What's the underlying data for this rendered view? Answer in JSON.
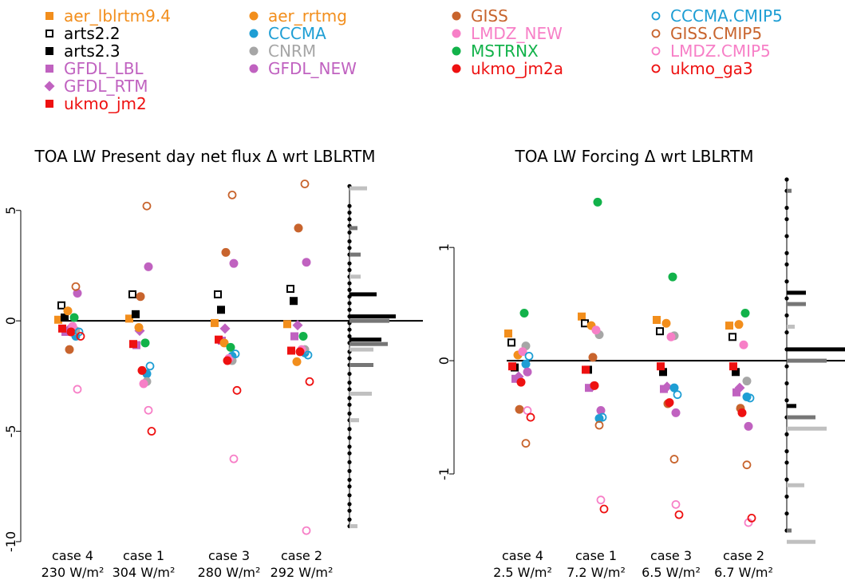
{
  "legend": [
    {
      "name": "aer_lblrtm9.4",
      "color": "#F28E1C",
      "shape": "square",
      "filled": true
    },
    {
      "name": "arts2.2",
      "color": "#000000",
      "shape": "square",
      "filled": false
    },
    {
      "name": "arts2.3",
      "color": "#000000",
      "shape": "square",
      "filled": true
    },
    {
      "name": "GFDL_LBL",
      "color": "#C062C0",
      "shape": "square",
      "filled": true
    },
    {
      "name": "GFDL_RTM",
      "color": "#C062C0",
      "shape": "diamond",
      "filled": true
    },
    {
      "name": "ukmo_jm2",
      "color": "#EE1111",
      "shape": "square",
      "filled": true
    },
    {
      "name": "aer_rrtmg",
      "color": "#F28E1C",
      "shape": "circle",
      "filled": true
    },
    {
      "name": "CCCMA",
      "color": "#1E9ED4",
      "shape": "circle",
      "filled": true
    },
    {
      "name": "CNRM",
      "color": "#A6A6A6",
      "shape": "circle",
      "filled": true
    },
    {
      "name": "GFDL_NEW",
      "color": "#C062C0",
      "shape": "circle",
      "filled": true
    },
    {
      "name": "GISS",
      "color": "#C8642D",
      "shape": "circle",
      "filled": true
    },
    {
      "name": "LMDZ_NEW",
      "color": "#F77FC7",
      "shape": "circle",
      "filled": true
    },
    {
      "name": "MSTRNX",
      "color": "#12B24A",
      "shape": "circle",
      "filled": true
    },
    {
      "name": "ukmo_jm2a",
      "color": "#EE1111",
      "shape": "circle",
      "filled": true
    },
    {
      "name": "CCCMA.CMIP5",
      "color": "#1E9ED4",
      "shape": "circle",
      "filled": false
    },
    {
      "name": "GISS.CMIP5",
      "color": "#C8642D",
      "shape": "circle",
      "filled": false
    },
    {
      "name": "LMDZ.CMIP5",
      "color": "#F77FC7",
      "shape": "circle",
      "filled": false
    },
    {
      "name": "ukmo_ga3",
      "color": "#EE1111",
      "shape": "circle",
      "filled": false
    }
  ],
  "chart_data": [
    {
      "type": "scatter",
      "title": "TOA LW Present day net flux Δ wrt LBLRTM",
      "ylim": [
        -10.4,
        6.4
      ],
      "yticks": [
        5,
        0,
        -5,
        -10
      ],
      "ytick_labels": [
        "5",
        "0",
        "-5",
        "-10"
      ],
      "categories": [
        {
          "line1": "case 4",
          "line2": "230 W/m²"
        },
        {
          "line1": "case 1",
          "line2": "304 W/m²"
        },
        {
          "line1": "case 3",
          "line2": "280 W/m²"
        },
        {
          "line1": "case 2",
          "line2": "292 W/m²"
        }
      ],
      "series": [
        {
          "name": "aer_lblrtm9.4",
          "values": [
            0.05,
            0.1,
            -0.1,
            -0.15
          ]
        },
        {
          "name": "arts2.2",
          "values": [
            0.7,
            1.2,
            1.2,
            1.45
          ]
        },
        {
          "name": "arts2.3",
          "values": [
            0.15,
            0.3,
            0.5,
            0.9
          ]
        },
        {
          "name": "GFDL_LBL",
          "values": [
            -0.5,
            -1.1,
            -0.9,
            -0.7
          ]
        },
        {
          "name": "GFDL_RTM",
          "values": [
            -0.4,
            -0.45,
            -0.35,
            -0.2
          ]
        },
        {
          "name": "ukmo_jm2",
          "values": [
            -0.35,
            -1.05,
            -0.85,
            -1.35
          ]
        },
        {
          "name": "aer_rrtmg",
          "values": [
            0.45,
            -0.3,
            -1.0,
            -1.85
          ]
        },
        {
          "name": "CCCMA",
          "values": [
            -0.7,
            -2.4,
            -1.6,
            -1.45
          ]
        },
        {
          "name": "CNRM",
          "values": [
            -0.45,
            -2.75,
            -1.8,
            -1.3
          ]
        },
        {
          "name": "GFDL_NEW",
          "values": [
            1.25,
            2.45,
            2.6,
            2.65
          ]
        },
        {
          "name": "GISS",
          "values": [
            -1.3,
            1.1,
            3.1,
            4.2
          ]
        },
        {
          "name": "LMDZ_NEW",
          "values": [
            -0.25,
            -2.85,
            -1.7,
            -1.3
          ]
        },
        {
          "name": "MSTRNX",
          "values": [
            0.15,
            -1.0,
            -1.2,
            -0.7
          ]
        },
        {
          "name": "ukmo_jm2a",
          "values": [
            -0.5,
            -2.25,
            -1.8,
            -1.4
          ]
        },
        {
          "name": "CCCMA.CMIP5",
          "values": [
            -0.5,
            -2.05,
            -1.5,
            -1.55
          ]
        },
        {
          "name": "GISS.CMIP5",
          "values": [
            1.55,
            5.2,
            5.7,
            6.2
          ]
        },
        {
          "name": "LMDZ.CMIP5",
          "values": [
            -3.1,
            -4.05,
            -6.25,
            -9.5
          ]
        },
        {
          "name": "ukmo_ga3",
          "values": [
            -0.7,
            -5.0,
            -3.15,
            -2.75
          ]
        }
      ],
      "distribution_dots": [
        6.1,
        5.2,
        4.9,
        4.6,
        4.3,
        4.0,
        3.6,
        3.3,
        3.0,
        2.6,
        2.3,
        2.0,
        1.7,
        1.4,
        1.1,
        0.8,
        0.5,
        0.2,
        -0.1,
        -0.4,
        -0.7,
        -1.0,
        -1.4,
        -1.7,
        -2.0,
        -2.4,
        -2.8,
        -3.1,
        -3.5,
        -3.8,
        -4.2,
        -4.5,
        -4.9,
        -5.3,
        -5.7,
        -6.0,
        -6.4,
        -6.8,
        -7.2,
        -7.5,
        -7.9,
        -8.3,
        -8.6,
        -9.0,
        -9.3
      ],
      "quantile_bars": [
        {
          "value": 0.2,
          "shade": "black",
          "len": 58
        },
        {
          "value": -0.85,
          "shade": "black",
          "len": 40
        },
        {
          "value": 1.2,
          "shade": "black",
          "len": 34
        },
        {
          "value": 0.0,
          "shade": "dark",
          "len": 50
        },
        {
          "value": -1.05,
          "shade": "dark",
          "len": 48
        },
        {
          "value": -2.0,
          "shade": "dark",
          "len": 30
        },
        {
          "value": 3.0,
          "shade": "dark",
          "len": 14
        },
        {
          "value": 4.2,
          "shade": "dark",
          "len": 10
        },
        {
          "value": 6.0,
          "shade": "light",
          "len": 22
        },
        {
          "value": 2.0,
          "shade": "light",
          "len": 14
        },
        {
          "value": -1.3,
          "shade": "light",
          "len": 30
        },
        {
          "value": -3.3,
          "shade": "light",
          "len": 28
        },
        {
          "value": -4.5,
          "shade": "light",
          "len": 12
        },
        {
          "value": -9.3,
          "shade": "light",
          "len": 10
        }
      ]
    },
    {
      "type": "scatter",
      "title": "TOA LW Forcing Δ wrt LBLRTM",
      "ylim": [
        -1.5,
        1.6
      ],
      "yticks": [
        1,
        0,
        -1
      ],
      "ytick_labels": [
        "1",
        "0",
        "-1"
      ],
      "categories": [
        {
          "line1": "case 4",
          "line2": "2.5 W/m²"
        },
        {
          "line1": "case 1",
          "line2": "7.2 W/m²"
        },
        {
          "line1": "case 3",
          "line2": "6.5 W/m²"
        },
        {
          "line1": "case 2",
          "line2": "6.7 W/m²"
        }
      ],
      "series": [
        {
          "name": "aer_lblrtm9.4",
          "values": [
            0.24,
            0.39,
            0.36,
            0.31
          ]
        },
        {
          "name": "arts2.2",
          "values": [
            0.16,
            0.33,
            0.26,
            0.21
          ]
        },
        {
          "name": "arts2.3",
          "values": [
            -0.06,
            -0.08,
            -0.1,
            -0.1
          ]
        },
        {
          "name": "GFDL_LBL",
          "values": [
            -0.16,
            -0.24,
            -0.25,
            -0.28
          ]
        },
        {
          "name": "GFDL_RTM",
          "values": [
            -0.14,
            -0.23,
            -0.23,
            -0.24
          ]
        },
        {
          "name": "ukmo_jm2",
          "values": [
            -0.05,
            -0.08,
            -0.05,
            -0.05
          ]
        },
        {
          "name": "aer_rrtmg",
          "values": [
            0.05,
            0.31,
            0.33,
            0.32
          ]
        },
        {
          "name": "CCCMA",
          "values": [
            -0.03,
            -0.51,
            -0.24,
            -0.32
          ]
        },
        {
          "name": "CNRM",
          "values": [
            0.13,
            0.23,
            0.22,
            -0.18
          ]
        },
        {
          "name": "GFDL_NEW",
          "values": [
            -0.1,
            -0.44,
            -0.46,
            -0.58
          ]
        },
        {
          "name": "GISS",
          "values": [
            -0.43,
            0.03,
            -0.38,
            -0.42
          ]
        },
        {
          "name": "LMDZ_NEW",
          "values": [
            0.08,
            0.27,
            0.21,
            0.14
          ]
        },
        {
          "name": "MSTRNX",
          "values": [
            0.42,
            1.4,
            0.74,
            0.42
          ]
        },
        {
          "name": "ukmo_jm2a",
          "values": [
            -0.19,
            -0.22,
            -0.37,
            -0.46
          ]
        },
        {
          "name": "CCCMA.CMIP5",
          "values": [
            0.04,
            -0.5,
            -0.3,
            -0.33
          ]
        },
        {
          "name": "GISS.CMIP5",
          "values": [
            -0.73,
            -0.57,
            -0.87,
            -0.92
          ]
        },
        {
          "name": "LMDZ.CMIP5",
          "values": [
            -0.44,
            -1.23,
            -1.27,
            -1.43
          ]
        },
        {
          "name": "ukmo_ga3",
          "values": [
            -0.5,
            -1.31,
            -1.36,
            -1.39
          ]
        }
      ],
      "distribution_dots": [
        1.6,
        1.5,
        1.35,
        1.25,
        1.1,
        0.95,
        0.85,
        0.7,
        0.55,
        0.4,
        0.25,
        0.1,
        -0.05,
        -0.2,
        -0.35,
        -0.5,
        -0.65,
        -0.8,
        -0.9,
        -1.05,
        -1.2,
        -1.35,
        -1.5
      ],
      "quantile_bars": [
        {
          "value": 0.6,
          "shade": "black",
          "len": 24
        },
        {
          "value": 0.1,
          "shade": "black",
          "len": 80
        },
        {
          "value": -0.4,
          "shade": "black",
          "len": 12
        },
        {
          "value": 0.5,
          "shade": "dark",
          "len": 24
        },
        {
          "value": 0.0,
          "shade": "dark",
          "len": 50
        },
        {
          "value": -0.5,
          "shade": "dark",
          "len": 36
        },
        {
          "value": 1.5,
          "shade": "dark",
          "len": 6
        },
        {
          "value": -1.5,
          "shade": "dark",
          "len": 6
        },
        {
          "value": 0.3,
          "shade": "light",
          "len": 10
        },
        {
          "value": -0.6,
          "shade": "light",
          "len": 50
        },
        {
          "value": -1.1,
          "shade": "light",
          "len": 22
        },
        {
          "value": -1.6,
          "shade": "light",
          "len": 36
        }
      ]
    }
  ]
}
